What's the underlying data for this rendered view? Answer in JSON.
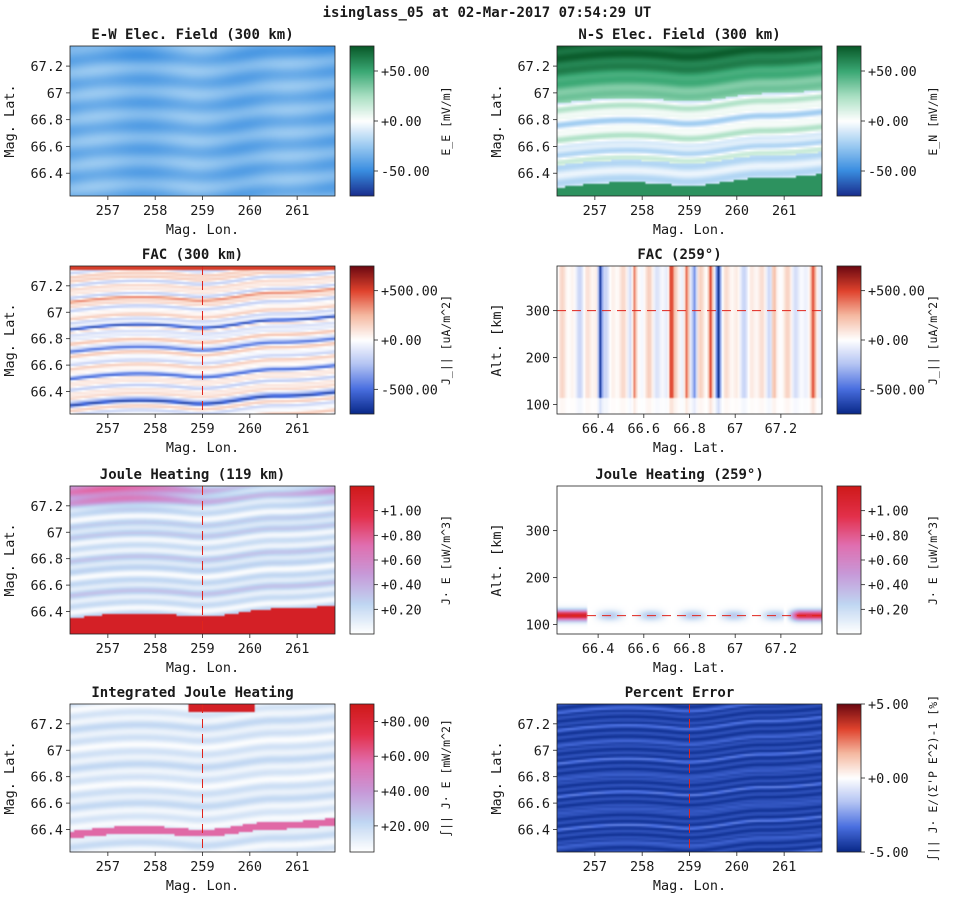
{
  "figure_title": "isinglass_05 at 02-Mar-2017 07:54:29 UT",
  "chart_data": [
    {
      "id": "ew",
      "type": "heatmap",
      "title": "E-W Elec. Field (300 km)",
      "xlabel": "Mag. Lon.",
      "ylabel": "Mag. Lat.",
      "xlim": [
        256.2,
        261.8
      ],
      "ylim": [
        66.23,
        67.35
      ],
      "xticks": [
        257,
        258,
        259,
        260,
        261
      ],
      "xtick_labels": [
        "257",
        "258",
        "259",
        "260",
        "261"
      ],
      "yticks": [
        66.4,
        66.6,
        66.8,
        67,
        67.2
      ],
      "ytick_labels": [
        "66.4",
        "66.6",
        "66.8",
        "67",
        "67.2"
      ],
      "cbar_label": "E_E [mV/m]",
      "cbar_ticks": [
        50,
        0,
        -50
      ],
      "cbar_tick_labels": [
        "+50.00",
        "+0.00",
        "-50.00"
      ],
      "cbar_range": [
        -75,
        75
      ],
      "colormap": "blue-white-green",
      "pattern": "ew_field",
      "marker_line": null
    },
    {
      "id": "ns",
      "type": "heatmap",
      "title": "N-S Elec. Field (300 km)",
      "xlabel": "Mag. Lon.",
      "ylabel": "Mag. Lat.",
      "xlim": [
        256.2,
        261.8
      ],
      "ylim": [
        66.23,
        67.35
      ],
      "xticks": [
        257,
        258,
        259,
        260,
        261
      ],
      "xtick_labels": [
        "257",
        "258",
        "259",
        "260",
        "261"
      ],
      "yticks": [
        66.4,
        66.6,
        66.8,
        67,
        67.2
      ],
      "ytick_labels": [
        "66.4",
        "66.6",
        "66.8",
        "67",
        "67.2"
      ],
      "cbar_label": "E_N [mV/m]",
      "cbar_ticks": [
        50,
        0,
        -50
      ],
      "cbar_tick_labels": [
        "+50.00",
        "+0.00",
        "-50.00"
      ],
      "cbar_range": [
        -75,
        75
      ],
      "colormap": "blue-white-green",
      "pattern": "ns_field",
      "marker_line": null
    },
    {
      "id": "fac_map",
      "type": "heatmap",
      "title": "FAC (300 km)",
      "xlabel": "Mag. Lon.",
      "ylabel": "Mag. Lat.",
      "xlim": [
        256.2,
        261.8
      ],
      "ylim": [
        66.23,
        67.35
      ],
      "xticks": [
        257,
        258,
        259,
        260,
        261
      ],
      "xtick_labels": [
        "257",
        "258",
        "259",
        "260",
        "261"
      ],
      "yticks": [
        66.4,
        66.6,
        66.8,
        67,
        67.2
      ],
      "ytick_labels": [
        "66.4",
        "66.6",
        "66.8",
        "67",
        "67.2"
      ],
      "cbar_label": "J_|| [uA/m^2]",
      "cbar_ticks": [
        500,
        0,
        -500
      ],
      "cbar_tick_labels": [
        "+500.00",
        "+0.00",
        "-500.00"
      ],
      "cbar_range": [
        -750,
        750
      ],
      "colormap": "blue-white-red",
      "pattern": "fac_bands",
      "marker_line": {
        "orientation": "vertical",
        "value": 259
      }
    },
    {
      "id": "fac_alt",
      "type": "heatmap",
      "title": "FAC (259°)",
      "xlabel": "Mag. Lat.",
      "ylabel": "Alt. [km]",
      "xlim": [
        66.22,
        67.38
      ],
      "ylim": [
        80,
        395
      ],
      "xticks": [
        66.4,
        66.6,
        66.8,
        67,
        67.2
      ],
      "xtick_labels": [
        "66.4",
        "66.6",
        "66.8",
        "67",
        "67.2"
      ],
      "yticks": [
        100,
        200,
        300
      ],
      "ytick_labels": [
        "100",
        "200",
        "300"
      ],
      "cbar_label": "J_|| [uA/m^2]",
      "cbar_ticks": [
        500,
        0,
        -500
      ],
      "cbar_tick_labels": [
        "+500.00",
        "+0.00",
        "-500.00"
      ],
      "cbar_range": [
        -750,
        750
      ],
      "colormap": "blue-white-red",
      "pattern": "fac_columns",
      "marker_line": {
        "orientation": "horizontal",
        "value": 300
      }
    },
    {
      "id": "joule_map",
      "type": "heatmap",
      "title": "Joule Heating (119 km)",
      "xlabel": "Mag. Lon.",
      "ylabel": "Mag. Lat.",
      "xlim": [
        256.2,
        261.8
      ],
      "ylim": [
        66.23,
        67.35
      ],
      "xticks": [
        257,
        258,
        259,
        260,
        261
      ],
      "xtick_labels": [
        "257",
        "258",
        "259",
        "260",
        "261"
      ],
      "yticks": [
        66.4,
        66.6,
        66.8,
        67,
        67.2
      ],
      "ytick_labels": [
        "66.4",
        "66.6",
        "66.8",
        "67",
        "67.2"
      ],
      "cbar_label": "J· E [uW/m^3]",
      "cbar_ticks": [
        1.0,
        0.8,
        0.6,
        0.4,
        0.2
      ],
      "cbar_tick_labels": [
        "+1.00",
        "+0.80",
        "+0.60",
        "+0.40",
        "+0.20"
      ],
      "cbar_range": [
        0,
        1.2
      ],
      "colormap": "white-blue-pink-red",
      "pattern": "joule_map",
      "marker_line": {
        "orientation": "vertical",
        "value": 259
      }
    },
    {
      "id": "joule_alt",
      "type": "heatmap",
      "title": "Joule Heating (259°)",
      "xlabel": "Mag. Lat.",
      "ylabel": "Alt. [km]",
      "xlim": [
        66.22,
        67.38
      ],
      "ylim": [
        80,
        395
      ],
      "xticks": [
        66.4,
        66.6,
        66.8,
        67,
        67.2
      ],
      "xtick_labels": [
        "66.4",
        "66.6",
        "66.8",
        "67",
        "67.2"
      ],
      "yticks": [
        100,
        200,
        300
      ],
      "ytick_labels": [
        "100",
        "200",
        "300"
      ],
      "cbar_label": "J· E [uW/m^3]",
      "cbar_ticks": [
        1.0,
        0.8,
        0.6,
        0.4,
        0.2
      ],
      "cbar_tick_labels": [
        "+1.00",
        "+0.80",
        "+0.60",
        "+0.40",
        "+0.20"
      ],
      "cbar_range": [
        0,
        1.2
      ],
      "colormap": "white-blue-pink-red",
      "pattern": "joule_alt",
      "marker_line": {
        "orientation": "horizontal",
        "value": 119
      }
    },
    {
      "id": "int_joule",
      "type": "heatmap",
      "title": "Integrated Joule Heating",
      "xlabel": "Mag. Lon.",
      "ylabel": "Mag. Lat.",
      "xlim": [
        256.2,
        261.8
      ],
      "ylim": [
        66.23,
        67.35
      ],
      "xticks": [
        257,
        258,
        259,
        260,
        261
      ],
      "xtick_labels": [
        "257",
        "258",
        "259",
        "260",
        "261"
      ],
      "yticks": [
        66.4,
        66.6,
        66.8,
        67,
        67.2
      ],
      "ytick_labels": [
        "66.4",
        "66.6",
        "66.8",
        "67",
        "67.2"
      ],
      "cbar_label": "∫|| J· E [mW/m^2]",
      "cbar_ticks": [
        80,
        60,
        40,
        20
      ],
      "cbar_tick_labels": [
        "+80.00",
        "+60.00",
        "+40.00",
        "+20.00"
      ],
      "cbar_range": [
        5,
        90
      ],
      "colormap": "white-blue-pink-red",
      "pattern": "int_joule",
      "marker_line": {
        "orientation": "vertical",
        "value": 259
      }
    },
    {
      "id": "pct_err",
      "type": "heatmap",
      "title": "Percent Error",
      "xlabel": "Mag. Lon.",
      "ylabel": "Mag. Lat.",
      "xlim": [
        256.2,
        261.8
      ],
      "ylim": [
        66.23,
        67.35
      ],
      "xticks": [
        257,
        258,
        259,
        260,
        261
      ],
      "xtick_labels": [
        "257",
        "258",
        "259",
        "260",
        "261"
      ],
      "yticks": [
        66.4,
        66.6,
        66.8,
        67,
        67.2
      ],
      "ytick_labels": [
        "66.4",
        "66.6",
        "66.8",
        "67",
        "67.2"
      ],
      "cbar_label": "∫|| J· E/(Σ'P E^2)-1 [%]",
      "cbar_ticks": [
        5,
        0,
        -5
      ],
      "cbar_tick_labels": [
        "+5.00",
        "+0.00",
        "-5.00"
      ],
      "cbar_range": [
        -5,
        5
      ],
      "colormap": "blue-white-red",
      "pattern": "pct_err",
      "marker_line": {
        "orientation": "vertical",
        "value": 259
      }
    }
  ],
  "colormaps": {
    "blue-white-green": [
      "#1a2f8f",
      "#3a8ee0",
      "#9bcaf1",
      "#ffffff",
      "#a8dfc2",
      "#3aa874",
      "#0a5a2a"
    ],
    "blue-white-red": [
      "#0a2a8a",
      "#4a6fe0",
      "#b3c3f3",
      "#ffffff",
      "#f5b9a1",
      "#e0432d",
      "#6e0a12"
    ],
    "white-blue-pink-red": [
      "#ffffff",
      "#bfd6f2",
      "#c79ad9",
      "#e06fb0",
      "#e3304a",
      "#cf1a1a"
    ]
  }
}
